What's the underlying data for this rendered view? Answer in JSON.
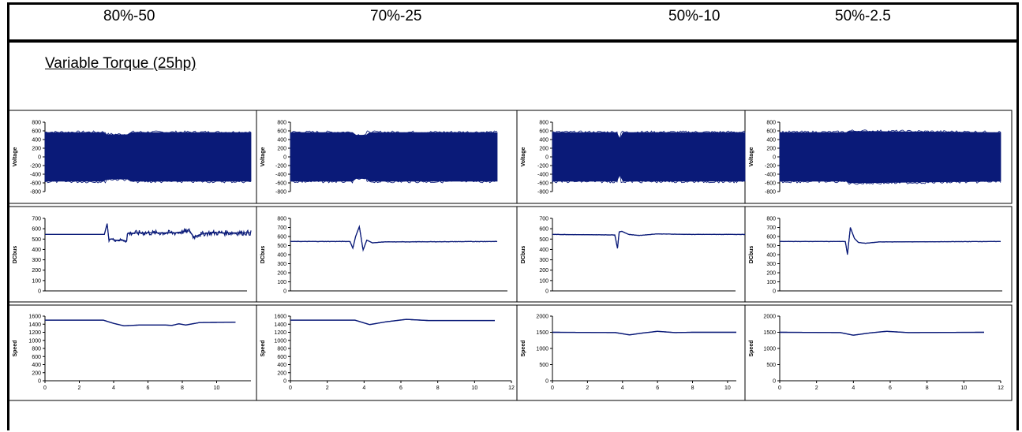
{
  "headers": [
    "80%-50",
    "70%-25",
    "50%-10",
    "50%-2.5"
  ],
  "subtitle": "Variable Torque (25hp)",
  "colors": {
    "series": "#0a1a78",
    "frame": "#000000"
  },
  "chart_data": [
    {
      "type": "line",
      "panel": "voltage",
      "column": "80%-50",
      "ylabel": "Voltage",
      "ylim": [
        -800,
        800
      ],
      "yticks": [
        -800,
        -600,
        -400,
        -200,
        0,
        200,
        400,
        600,
        800
      ],
      "xlim": [
        0,
        11.1
      ],
      "xticks": [],
      "band": {
        "upper": 560,
        "lower": -560
      },
      "dip_at": 3.8,
      "series": [
        {
          "x": [
            0,
            3.3,
            3.3,
            4.6,
            4.6,
            11.1
          ],
          "upper": [
            560,
            560,
            510,
            510,
            560,
            560
          ],
          "lower": [
            -560,
            -560,
            -510,
            -510,
            -560,
            -560
          ]
        }
      ]
    },
    {
      "type": "line",
      "panel": "voltage",
      "column": "70%-25",
      "ylabel": "Voltage",
      "ylim": [
        -800,
        800
      ],
      "yticks": [
        -800,
        -600,
        -400,
        -200,
        0,
        200,
        400,
        600,
        800
      ],
      "xlim": [
        0,
        11.1
      ],
      "xticks": [],
      "series": [
        {
          "x": [
            0,
            3.4,
            3.4,
            4.1,
            4.1,
            11.1
          ],
          "upper": [
            560,
            560,
            500,
            500,
            560,
            560
          ],
          "lower": [
            -560,
            -560,
            -500,
            -500,
            -560,
            -560
          ]
        }
      ]
    },
    {
      "type": "line",
      "panel": "voltage",
      "column": "50%-10",
      "ylabel": "Voltage",
      "ylim": [
        -800,
        800
      ],
      "yticks": [
        -800,
        -600,
        -400,
        -200,
        0,
        200,
        400,
        600,
        800
      ],
      "xlim": [
        0,
        11.1
      ],
      "xticks": [],
      "series": [
        {
          "x": [
            0,
            3.8,
            3.8,
            3.95,
            3.95,
            11.1
          ],
          "upper": [
            560,
            560,
            420,
            420,
            560,
            560
          ],
          "lower": [
            -560,
            -560,
            -420,
            -420,
            -560,
            -560
          ]
        }
      ]
    },
    {
      "type": "line",
      "panel": "voltage",
      "column": "50%-2.5",
      "ylabel": "Voltage",
      "ylim": [
        -800,
        800
      ],
      "yticks": [
        -800,
        -600,
        -400,
        -200,
        0,
        200,
        400,
        600,
        800
      ],
      "xlim": [
        0,
        11.1
      ],
      "xticks": [],
      "series": [
        {
          "x": [
            0,
            3.4,
            3.5,
            11.1
          ],
          "upper": [
            560,
            560,
            590,
            560
          ],
          "lower": [
            -560,
            -560,
            -600,
            -560
          ]
        }
      ]
    },
    {
      "type": "line",
      "panel": "dcbus",
      "column": "80%-50",
      "ylabel": "DCbus",
      "ylim": [
        0,
        700
      ],
      "yticks": [
        0,
        100,
        200,
        300,
        400,
        500,
        600,
        700
      ],
      "xlim": [
        0,
        11.1
      ],
      "xticks": [],
      "series": [
        {
          "x": [
            0,
            3.2,
            3.35,
            3.45,
            3.5,
            3.6,
            3.8,
            4.2,
            4.4,
            4.45,
            5,
            6,
            7,
            7.8,
            8,
            8.3,
            8.6,
            9,
            10,
            11.1
          ],
          "y": [
            545,
            545,
            650,
            480,
            500,
            500,
            490,
            490,
            480,
            555,
            560,
            560,
            560,
            580,
            520,
            540,
            555,
            560,
            560,
            560
          ],
          "noise": [
            0,
            0,
            0,
            0,
            0,
            10,
            15,
            15,
            15,
            25,
            25,
            25,
            25,
            25,
            25,
            20,
            25,
            25,
            25,
            25
          ]
        }
      ]
    },
    {
      "type": "line",
      "panel": "dcbus",
      "column": "70%-25",
      "ylabel": "DCbus",
      "ylim": [
        0,
        800
      ],
      "yticks": [
        0,
        100,
        200,
        300,
        400,
        500,
        600,
        700,
        800
      ],
      "xlim": [
        0,
        11.1
      ],
      "xticks": [],
      "series": [
        {
          "x": [
            0,
            3.2,
            3.35,
            3.5,
            3.7,
            3.9,
            4.1,
            4.4,
            5,
            11.1
          ],
          "y": [
            545,
            545,
            470,
            600,
            710,
            450,
            560,
            530,
            540,
            545
          ],
          "noise": [
            3,
            3,
            0,
            0,
            0,
            0,
            0,
            0,
            3,
            3
          ]
        }
      ]
    },
    {
      "type": "line",
      "panel": "dcbus",
      "column": "50%-10",
      "ylabel": "DCbus",
      "ylim": [
        0,
        700
      ],
      "yticks": [
        0,
        100,
        200,
        300,
        400,
        500,
        600,
        700
      ],
      "xlim": [
        0,
        11.1
      ],
      "xticks": [],
      "series": [
        {
          "x": [
            0,
            3.6,
            3.75,
            3.85,
            4.0,
            4.4,
            5,
            6,
            8,
            11.1
          ],
          "y": [
            545,
            540,
            410,
            570,
            575,
            545,
            535,
            550,
            545,
            545
          ],
          "noise": [
            2,
            2,
            0,
            0,
            0,
            2,
            2,
            2,
            2,
            2
          ]
        }
      ]
    },
    {
      "type": "line",
      "panel": "dcbus",
      "column": "50%-2.5",
      "ylabel": "DCbus",
      "ylim": [
        0,
        800
      ],
      "yticks": [
        0,
        100,
        200,
        300,
        400,
        500,
        600,
        700,
        800
      ],
      "xlim": [
        0,
        11.1
      ],
      "xticks": [],
      "series": [
        {
          "x": [
            0,
            3.3,
            3.4,
            3.55,
            3.75,
            3.95,
            4.3,
            5,
            11.1
          ],
          "y": [
            545,
            545,
            400,
            700,
            580,
            535,
            525,
            540,
            545
          ],
          "noise": [
            2,
            2,
            0,
            0,
            0,
            0,
            2,
            2,
            2
          ]
        }
      ]
    },
    {
      "type": "line",
      "panel": "speed",
      "column": "80%-50",
      "ylabel": "Speed",
      "ylim": [
        0,
        1600
      ],
      "yticks": [
        0,
        200,
        400,
        600,
        800,
        1000,
        1200,
        1400,
        1600
      ],
      "xlim": [
        0,
        12
      ],
      "xticks": [
        0,
        2,
        4,
        6,
        8,
        10
      ],
      "series": [
        {
          "x": [
            0,
            3.4,
            4.0,
            4.6,
            5.5,
            7.0,
            7.4,
            7.8,
            8.2,
            9,
            11.1
          ],
          "y": [
            1500,
            1500,
            1420,
            1360,
            1380,
            1380,
            1370,
            1410,
            1380,
            1440,
            1450
          ]
        }
      ]
    },
    {
      "type": "line",
      "panel": "speed",
      "column": "70%-25",
      "ylabel": "Speed",
      "ylim": [
        0,
        1600
      ],
      "yticks": [
        0,
        200,
        400,
        600,
        800,
        1000,
        1200,
        1400,
        1600
      ],
      "xlim": [
        0,
        12
      ],
      "xticks": [
        0,
        2,
        4,
        6,
        8,
        10,
        12
      ],
      "series": [
        {
          "x": [
            0,
            3.5,
            4.3,
            5.2,
            6.3,
            7.5,
            11.1
          ],
          "y": [
            1500,
            1500,
            1390,
            1460,
            1520,
            1490,
            1490
          ]
        }
      ]
    },
    {
      "type": "line",
      "panel": "speed",
      "column": "50%-10",
      "ylabel": "Speed",
      "ylim": [
        0,
        2000
      ],
      "yticks": [
        0,
        500,
        1000,
        1500,
        2000
      ],
      "xlim": [
        0,
        10.5
      ],
      "xticks": [
        0,
        2,
        4,
        6,
        8,
        10
      ],
      "series": [
        {
          "x": [
            0,
            3.6,
            4.4,
            5.2,
            6.0,
            7.0,
            8,
            10.5
          ],
          "y": [
            1500,
            1490,
            1420,
            1480,
            1530,
            1490,
            1500,
            1500
          ]
        }
      ]
    },
    {
      "type": "line",
      "panel": "speed",
      "column": "50%-2.5",
      "ylabel": "Speed",
      "ylim": [
        0,
        2000
      ],
      "yticks": [
        0,
        500,
        1000,
        1500,
        2000
      ],
      "xlim": [
        0,
        12
      ],
      "xticks": [
        0,
        2,
        4,
        6,
        8,
        10,
        12
      ],
      "series": [
        {
          "x": [
            0,
            3.3,
            4.0,
            4.9,
            5.8,
            7.0,
            11.1
          ],
          "y": [
            1500,
            1490,
            1410,
            1480,
            1530,
            1490,
            1500
          ]
        }
      ]
    }
  ]
}
